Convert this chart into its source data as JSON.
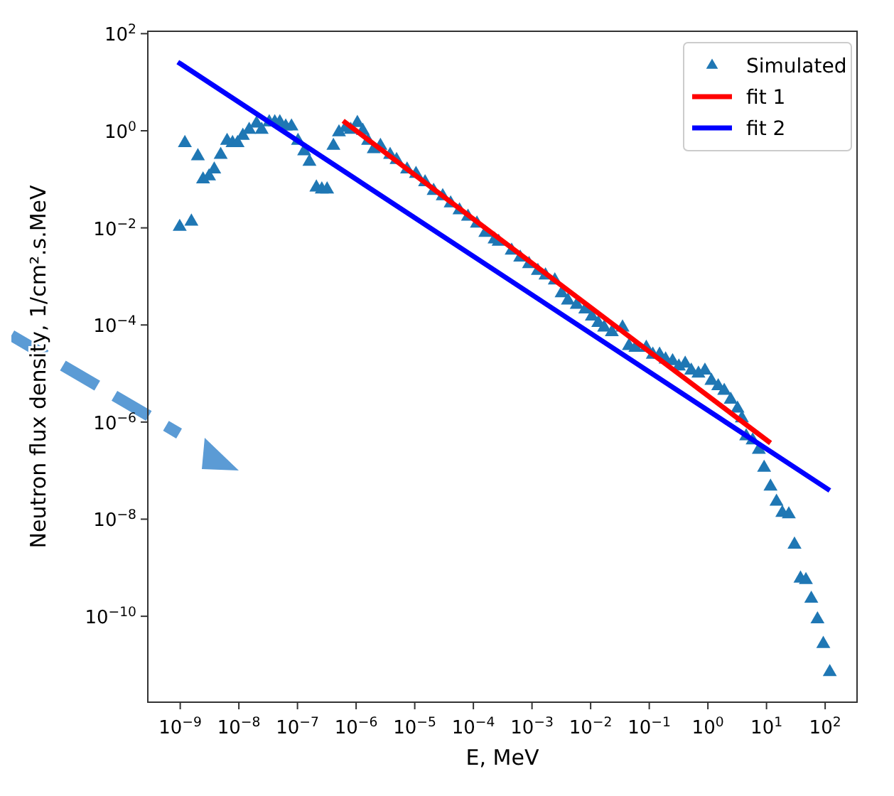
{
  "chart_data": {
    "type": "scatter",
    "xlabel": "E, MeV",
    "ylabel": "Neutron flux density, 1/cm².s.MeV",
    "log": "xy",
    "legend": "top right",
    "xlim": [
      2.8e-10,
      350
    ],
    "ylim": [
      1.7e-12,
      112
    ],
    "xticks": [
      {
        "value": 1e-09,
        "label": "10$^{−9}$"
      },
      {
        "value": 1e-08,
        "label": "10$^{−8}$"
      },
      {
        "value": 1e-07,
        "label": "10$^{−7}$"
      },
      {
        "value": 1e-06,
        "label": "10$^{−6}$"
      },
      {
        "value": 1e-05,
        "label": "10$^{−5}$"
      },
      {
        "value": 0.0001,
        "label": "10$^{−4}$"
      },
      {
        "value": 0.001,
        "label": "10$^{−3}$"
      },
      {
        "value": 0.01,
        "label": "10$^{−2}$"
      },
      {
        "value": 0.1,
        "label": "10$^{−1}$"
      },
      {
        "value": 1,
        "label": "10$^{0}$"
      },
      {
        "value": 10,
        "label": "10$^{1}$"
      },
      {
        "value": 100,
        "label": "10$^{2}$"
      }
    ],
    "yticks": [
      {
        "value": 1e-10,
        "label": "10$^{−10}$"
      },
      {
        "value": 1e-08,
        "label": "10$^{−8}$"
      },
      {
        "value": 1e-06,
        "label": "10$^{−6}$"
      },
      {
        "value": 0.0001,
        "label": "10$^{−4}$"
      },
      {
        "value": 0.01,
        "label": "10$^{−2}$"
      },
      {
        "value": 1,
        "label": "10$^{0}$"
      },
      {
        "value": 100,
        "label": "10$^{2}$"
      }
    ],
    "series": [
      {
        "name": "Simulated",
        "marker": "triangle",
        "color": "#1f77b4",
        "x": [
          9.8e-10,
          1.2e-09,
          1.55e-09,
          2e-09,
          2.45e-09,
          3.1e-09,
          3.8e-09,
          4.9e-09,
          6.3e-09,
          7.8e-09,
          9.5e-09,
          1.17e-08,
          1.5e-08,
          2e-08,
          2.45e-08,
          3.3e-08,
          4.1e-08,
          5e-08,
          6.3e-08,
          7.9e-08,
          1.02e-07,
          1.3e-07,
          1.6e-07,
          2.1e-07,
          2.6e-07,
          3.2e-07,
          4.1e-07,
          5.1e-07,
          6.6e-07,
          8.1e-07,
          1.05e-06,
          1.3e-06,
          1.6e-06,
          2e-06,
          2.6e-06,
          3.8e-06,
          4.9e-06,
          7.4e-06,
          1.05e-05,
          1.5e-05,
          2.1e-05,
          3e-05,
          4.1e-05,
          5.8e-05,
          8.1e-05,
          0.000115,
          0.00016,
          0.00023,
          0.00027,
          0.00045,
          0.00063,
          0.00089,
          0.00126,
          0.0017,
          0.00245,
          0.0032,
          0.0041,
          0.0058,
          0.0081,
          0.0105,
          0.0135,
          0.017,
          0.023,
          0.035,
          0.045,
          0.058,
          0.089,
          0.115,
          0.15,
          0.19,
          0.25,
          0.32,
          0.41,
          0.52,
          0.69,
          0.89,
          1.15,
          1.5,
          1.9,
          2.45,
          3.2,
          3.8,
          4.5,
          5.8,
          7.4,
          9.1,
          11.7,
          14.8,
          18.6,
          24,
          30,
          38,
          47,
          58,
          74,
          93,
          120
        ],
        "values": [
          0.0105,
          0.56,
          0.0135,
          0.3,
          0.1,
          0.115,
          0.16,
          0.32,
          0.62,
          0.56,
          0.56,
          0.79,
          1.05,
          1.41,
          1.05,
          1.5,
          1.5,
          1.5,
          1.23,
          1.23,
          0.62,
          0.38,
          0.23,
          0.068,
          0.062,
          0.062,
          0.49,
          0.93,
          1.15,
          1.05,
          1.45,
          1.0,
          0.62,
          0.42,
          0.49,
          0.32,
          0.25,
          0.16,
          0.13,
          0.087,
          0.058,
          0.045,
          0.032,
          0.023,
          0.017,
          0.0123,
          0.0079,
          0.0058,
          0.0052,
          0.0034,
          0.00245,
          0.0018,
          0.0013,
          0.00105,
          0.00083,
          0.00045,
          0.00032,
          0.00026,
          0.00021,
          0.00015,
          0.00011,
          8.9e-05,
          7.1e-05,
          8.9e-05,
          3.7e-05,
          3.4e-05,
          3.4e-05,
          2.45e-05,
          2.45e-05,
          1.95e-05,
          1.8e-05,
          1.4e-05,
          1.6e-05,
          1.15e-05,
          1e-05,
          1.15e-05,
          7.1e-06,
          5.5e-06,
          4.4e-06,
          2.9e-06,
          1.9e-06,
          1.2e-06,
          5.1e-07,
          4.2e-07,
          2.7e-07,
          1.15e-07,
          4.7e-08,
          2.3e-08,
          1.35e-08,
          1.26e-08,
          3e-09,
          6e-10,
          5.6e-10,
          2.3e-10,
          8.7e-11,
          2.7e-11,
          7.1e-12
        ]
      },
      {
        "name": "fit 1",
        "type": "line",
        "marker": "none",
        "color": "#ff0000",
        "x": [
          6e-07,
          11.7
        ],
        "values": [
          1.6,
          3.7e-07
        ]
      },
      {
        "name": "fit 2",
        "type": "line",
        "marker": "none",
        "color": "#0000ff",
        "x": [
          9.1e-10,
          120
        ],
        "values": [
          26,
          3.9e-08
        ]
      }
    ]
  }
}
